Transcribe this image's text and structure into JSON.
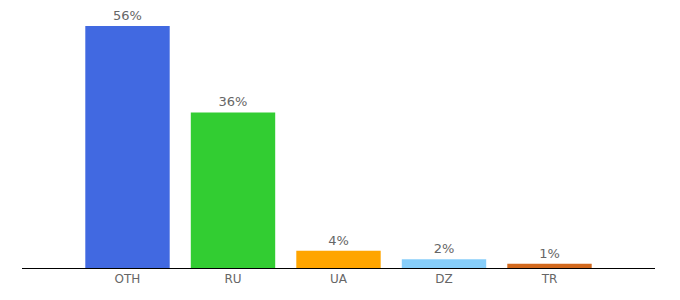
{
  "chart_data": {
    "type": "bar",
    "categories": [
      "OTH",
      "RU",
      "UA",
      "DZ",
      "TR"
    ],
    "values": [
      56,
      36,
      4,
      2,
      1
    ],
    "value_labels": [
      "56%",
      "36%",
      "4%",
      "2%",
      "1%"
    ],
    "colors": [
      "#4169e1",
      "#32cd32",
      "#ffa500",
      "#87cefa",
      "#d2691e"
    ],
    "ylim": [
      0,
      56
    ],
    "grid": false,
    "data_labels": true,
    "tick_labels": "x"
  }
}
